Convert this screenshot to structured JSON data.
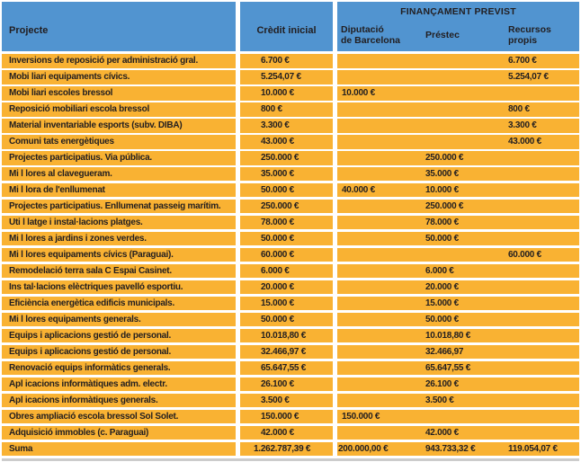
{
  "colors": {
    "header_blue": "#5194D0",
    "row_orange": "#F9B233",
    "text_dark": "#221E20",
    "separator_white": "#FFFFFF"
  },
  "header": {
    "project": "Projecte",
    "credit": "Crèdit inicial",
    "financing_group": "FINANÇAMENT PREVIST",
    "diputacio": "Diputació\nde Barcelona",
    "prestec": "Préstec",
    "recursos": "Recursos\npropis"
  },
  "rows": [
    {
      "project": "Inversions de reposició per administració gral.",
      "credit": "6.700 €",
      "diputacio": "",
      "prestec": "",
      "recursos": "6.700 €"
    },
    {
      "project": "Mobi liari equipaments cívics.",
      "credit": "5.254,07 €",
      "diputacio": "",
      "prestec": "",
      "recursos": "5.254,07 €"
    },
    {
      "project": "Mobi liari escoles bressol",
      "credit": "10.000 €",
      "diputacio": "10.000 €",
      "prestec": "",
      "recursos": ""
    },
    {
      "project": "Reposició mobiliari escola bressol",
      "credit": "800 €",
      "diputacio": "",
      "prestec": "",
      "recursos": "800 €"
    },
    {
      "project": "Material inventariable esports (subv. DIBA)",
      "credit": "3.300 €",
      "diputacio": "",
      "prestec": "",
      "recursos": "3.300 €"
    },
    {
      "project": "Comuni tats energètiques",
      "credit": "43.000 €",
      "diputacio": "",
      "prestec": "",
      "recursos": "43.000 €"
    },
    {
      "project": "Projectes participatius. Via pública.",
      "credit": "250.000 €",
      "diputacio": "",
      "prestec": "250.000 €",
      "recursos": ""
    },
    {
      "project": "Mi l lores al clavegueram.",
      "credit": "35.000 €",
      "diputacio": "",
      "prestec": "35.000 €",
      "recursos": ""
    },
    {
      "project": "Mi l lora de l'enllumenat",
      "credit": "50.000 €",
      "diputacio": "40.000 €",
      "prestec": "10.000 €",
      "recursos": ""
    },
    {
      "project": "Projectes participatius. Enllumenat passeig marítim.",
      "credit": "250.000 €",
      "diputacio": "",
      "prestec": "250.000 €",
      "recursos": ""
    },
    {
      "project": "Uti l latge i instal·lacions platges.",
      "credit": "78.000 €",
      "diputacio": "",
      "prestec": "78.000 €",
      "recursos": ""
    },
    {
      "project": "Mi l lores a jardins i zones verdes.",
      "credit": "50.000 €",
      "diputacio": "",
      "prestec": "50.000 €",
      "recursos": ""
    },
    {
      "project": "Mi l lores equipaments cívics (Paraguai).",
      "credit": "60.000 €",
      "diputacio": "",
      "prestec": "",
      "recursos": "60.000 €"
    },
    {
      "project": "Remodelació terra sala C Espai Casinet.",
      "credit": "6.000 €",
      "diputacio": "",
      "prestec": "6.000 €",
      "recursos": ""
    },
    {
      "project": "Ins tal·lacions elèctriques pavelló esportiu.",
      "credit": "20.000 €",
      "diputacio": "",
      "prestec": "20.000 €",
      "recursos": ""
    },
    {
      "project": "Eficiència energètica edificis municipals.",
      "credit": "15.000 €",
      "diputacio": "",
      "prestec": "15.000 €",
      "recursos": ""
    },
    {
      "project": "Mi l lores equipaments generals.",
      "credit": "50.000 €",
      "diputacio": "",
      "prestec": "50.000 €",
      "recursos": ""
    },
    {
      "project": "Equips i aplicacions gestió de personal.",
      "credit": "10.018,80 €",
      "diputacio": "",
      "prestec": "10.018,80 €",
      "recursos": ""
    },
    {
      "project": "Equips i aplicacions gestió de personal.",
      "credit": "32.466,97 €",
      "diputacio": "",
      "prestec": "32.466,97",
      "recursos": ""
    },
    {
      "project": "Renovació equips informàtics generals.",
      "credit": "65.647,55 €",
      "diputacio": "",
      "prestec": "65.647,55 €",
      "recursos": ""
    },
    {
      "project": "Apl icacions informàtiques adm. electr.",
      "credit": "26.100 €",
      "diputacio": "",
      "prestec": "26.100 €",
      "recursos": ""
    },
    {
      "project": "Apl icacions informàtiques generals.",
      "credit": "3.500 €",
      "diputacio": "",
      "prestec": "3.500 €",
      "recursos": ""
    },
    {
      "project": "Obres ampliació escola bressol Sol Solet.",
      "credit": "150.000 €",
      "diputacio": "150.000 €",
      "prestec": "",
      "recursos": ""
    },
    {
      "project": "Adquisició immobles (c. Paraguai)",
      "credit": "42.000 €",
      "diputacio": "",
      "prestec": "42.000 €",
      "recursos": ""
    }
  ],
  "total": {
    "project": "Suma",
    "credit": "1.262.787,39 €",
    "diputacio": "200.000,00 €",
    "prestec": "943.733,32 €",
    "recursos": "119.054,07 €"
  }
}
